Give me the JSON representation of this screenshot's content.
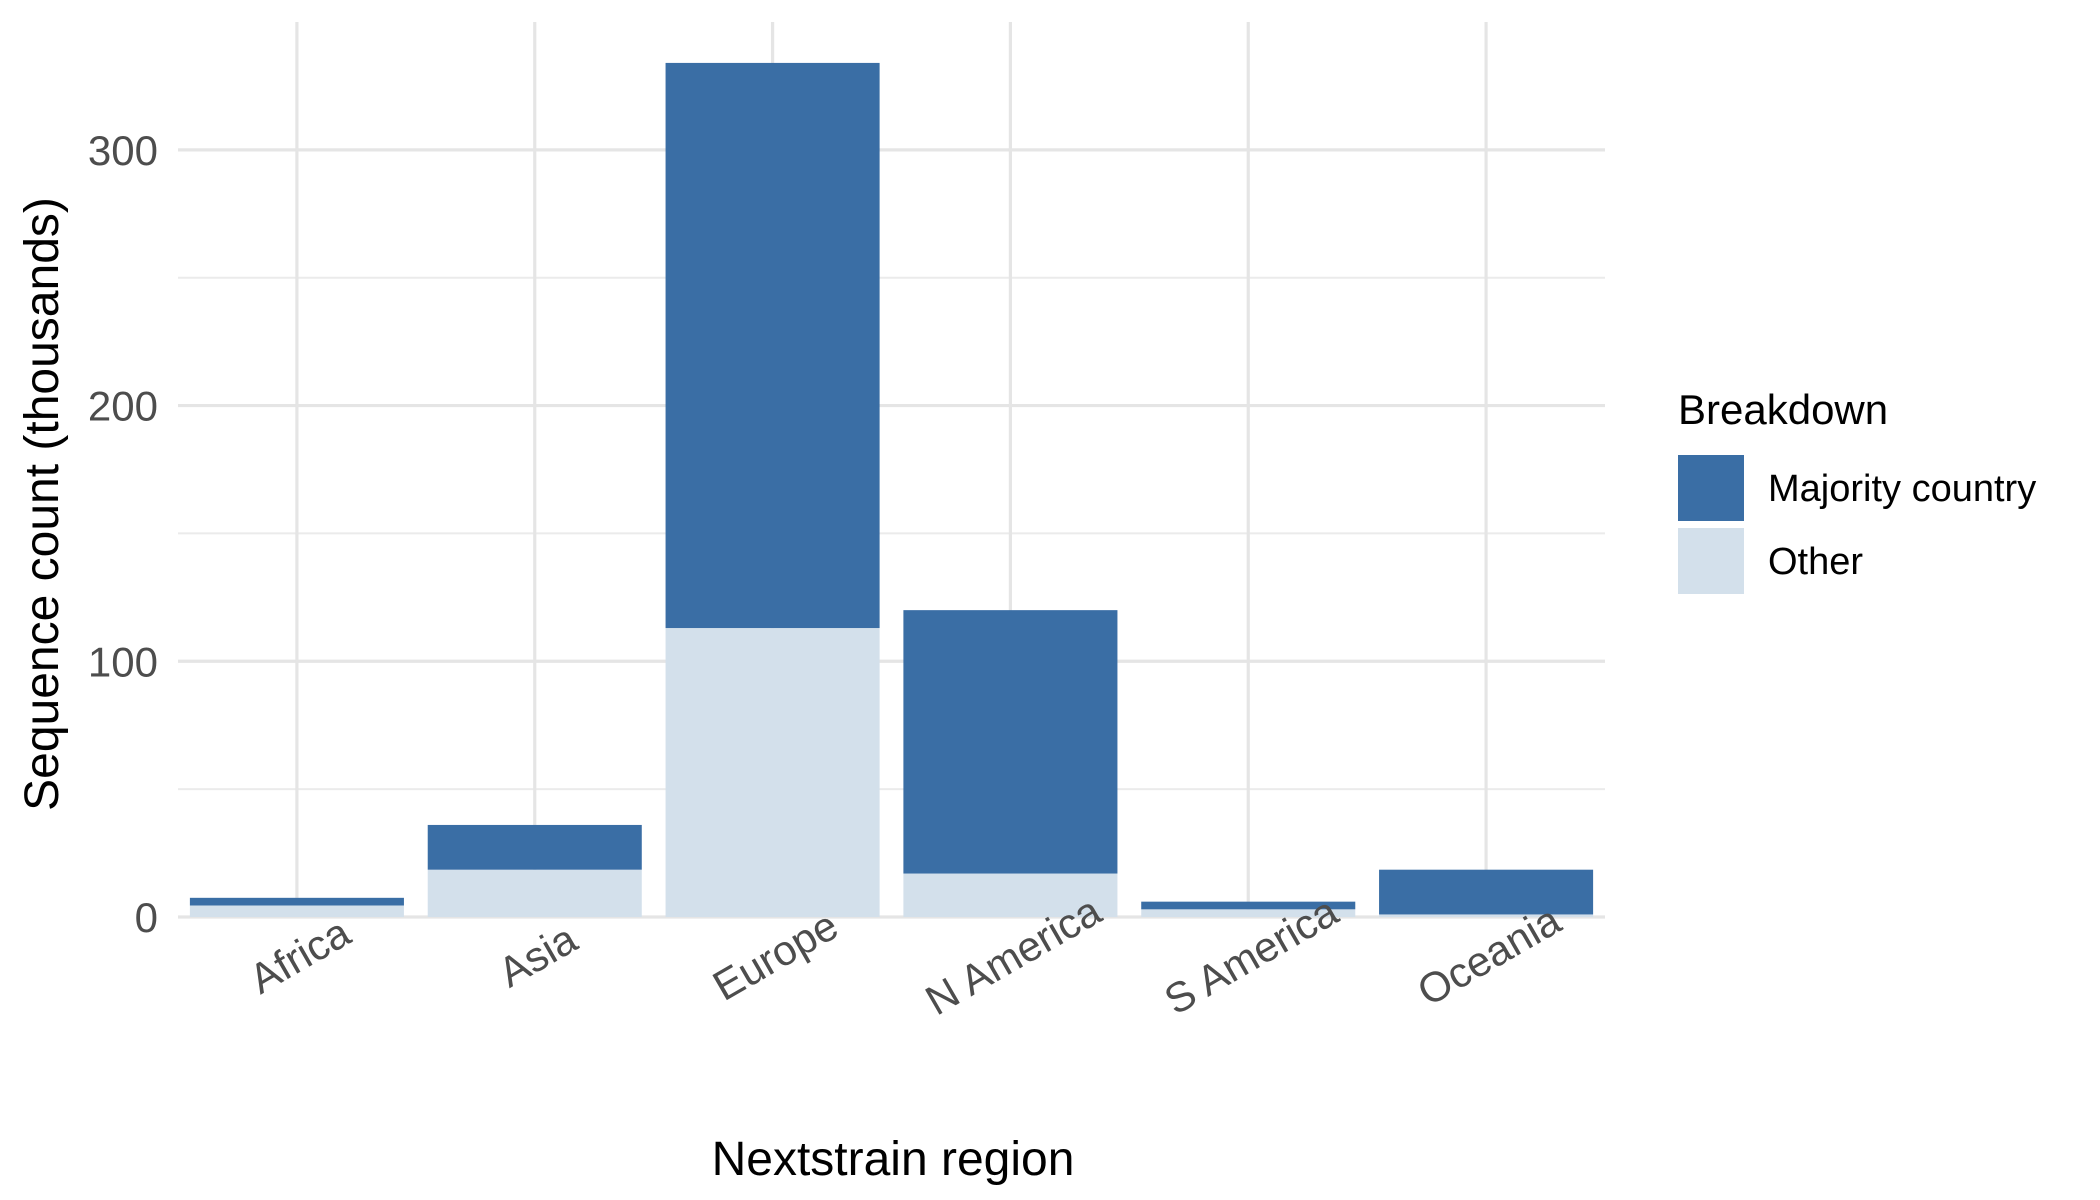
{
  "chart_data": {
    "type": "bar",
    "stacked": true,
    "categories": [
      "Africa",
      "Asia",
      "Europe",
      "N America",
      "S America",
      "Oceania"
    ],
    "series": [
      {
        "name": "Other",
        "color": "#d3e0eb",
        "values": [
          4.5,
          18.5,
          113,
          17,
          3,
          1
        ]
      },
      {
        "name": "Majority country",
        "color": "#3a6ea5",
        "values": [
          3,
          17.5,
          221,
          103,
          3,
          17.5
        ]
      }
    ],
    "title": "",
    "xlabel": "Nextstrain region",
    "ylabel": "Sequence count (thousands)",
    "ylim": [
      0,
      350
    ],
    "yticks": [
      0,
      100,
      200,
      300
    ],
    "grid": true,
    "legend": {
      "title": "Breakdown",
      "position": "right",
      "items": [
        "Majority country",
        "Other"
      ]
    }
  }
}
